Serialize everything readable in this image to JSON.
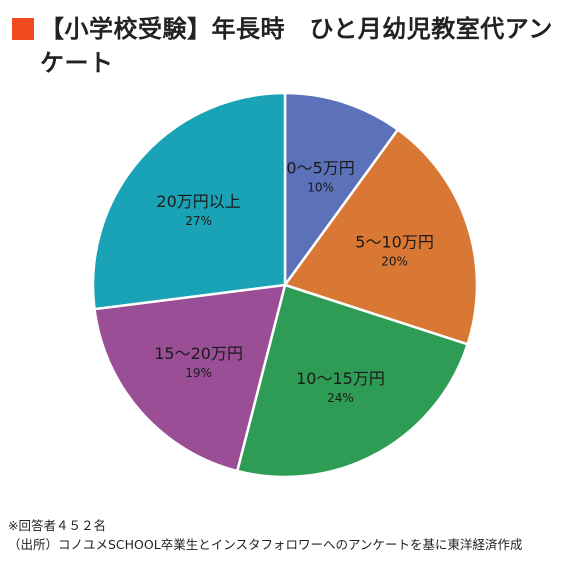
{
  "colors": {
    "title_marker": "#F04A1E",
    "slice_border": "#ffffff"
  },
  "chart_data": {
    "type": "pie",
    "title": "【小学校受験】年長時　ひと月幼児教室代アンケート",
    "slices": [
      {
        "label": "0〜5万円",
        "value": 10,
        "value_label": "10%",
        "color": "#5B72BB"
      },
      {
        "label": "5〜10万円",
        "value": 20,
        "value_label": "20%",
        "color": "#D97835"
      },
      {
        "label": "10〜15万円",
        "value": 24,
        "value_label": "24%",
        "color": "#2E9C55"
      },
      {
        "label": "15〜20万円",
        "value": 19,
        "value_label": "19%",
        "color": "#9A4E96"
      },
      {
        "label": "20万円以上",
        "value": 27,
        "value_label": "27%",
        "color": "#1AA3B6"
      }
    ],
    "start_angle_deg": 0,
    "direction": "clockwise",
    "legend": "none"
  },
  "notes": {
    "respondents": "※回答者４５２名",
    "source": "（出所）コノユメSCHOOL卒業生とインスタフォロワーへのアンケートを基に東洋経済作成"
  }
}
